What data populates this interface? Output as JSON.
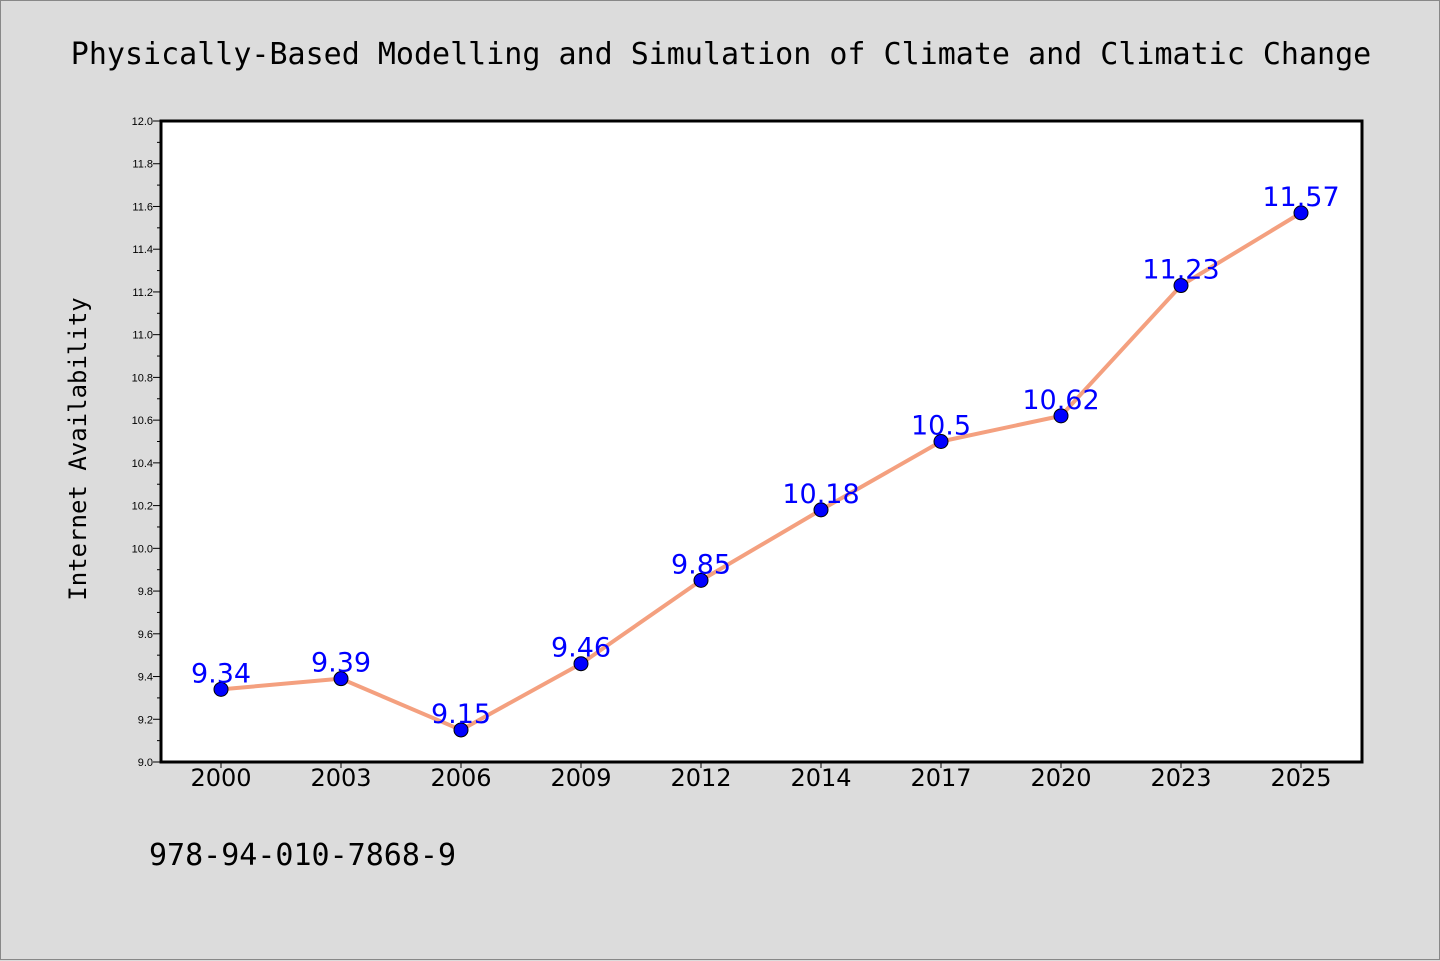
{
  "chart_data": {
    "type": "line",
    "title": "Physically-Based Modelling and Simulation of Climate and Climatic Change",
    "ylabel": "Internet Availability",
    "xlabel": "",
    "categories": [
      "2000",
      "2003",
      "2006",
      "2009",
      "2012",
      "2014",
      "2017",
      "2020",
      "2023",
      "2025"
    ],
    "series": [
      {
        "values": [
          9.34,
          9.39,
          9.15,
          9.46,
          9.85,
          10.18,
          10.5,
          10.62,
          11.23,
          11.57
        ]
      }
    ],
    "data_labels": [
      "9.34",
      "9.39",
      "9.15",
      "9.46",
      "9.85",
      "10.18",
      "10.5",
      "10.62",
      "11.23",
      "11.57"
    ],
    "ylim": [
      9.0,
      12.0
    ],
    "yticks": [
      "9.0",
      "9.2",
      "9.4",
      "9.6",
      "9.8",
      "10.0",
      "10.2",
      "10.4",
      "10.6",
      "10.8",
      "11.0",
      "11.2",
      "11.4",
      "11.6",
      "11.8",
      "12.0"
    ],
    "grid": false,
    "line_color": "#f4a07f",
    "marker_color": "#0000ff",
    "label_color": "#0000ff",
    "background_color": "#dcdcdc",
    "plot_background_color": "#ffffff"
  },
  "footer": {
    "isbn": "978-94-010-7868-9"
  }
}
